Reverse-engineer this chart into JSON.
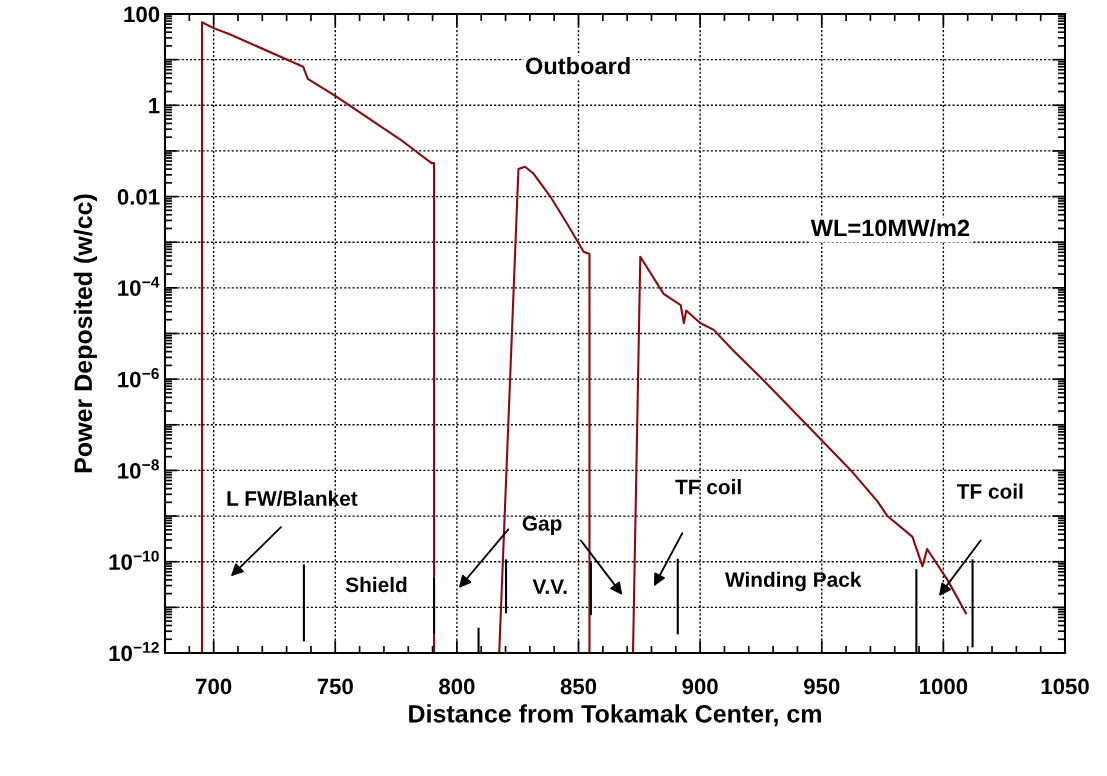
{
  "chart_data": {
    "type": "line",
    "xlabel": "Distance from Tokamak Center, cm",
    "ylabel": "Power Deposited (w/cc)",
    "log": "y",
    "grid": true,
    "legend": false,
    "xlim": [
      680,
      1050
    ],
    "xticks": [
      700,
      750,
      800,
      850,
      900,
      950,
      1000,
      1050
    ],
    "ylim": [
      1e-12,
      100
    ],
    "yticks": [
      {
        "value": 1e-12,
        "label": "10$^{−12}$"
      },
      {
        "value": 1e-11,
        "label": null
      },
      {
        "value": 1e-10,
        "label": "10$^{−10}$"
      },
      {
        "value": 1e-09,
        "label": null
      },
      {
        "value": 1e-08,
        "label": "10$^{−8}$"
      },
      {
        "value": 1e-07,
        "label": null
      },
      {
        "value": 1e-06,
        "label": "10$^{−6}$"
      },
      {
        "value": 1e-05,
        "label": null
      },
      {
        "value": 0.0001,
        "label": "10$^{−4}$"
      },
      {
        "value": 0.001,
        "label": null
      },
      {
        "value": 0.01,
        "label": "0.01"
      },
      {
        "value": 0.1,
        "label": null
      },
      {
        "value": 1,
        "label": "1"
      },
      {
        "value": 10,
        "label": null
      },
      {
        "value": 100,
        "label": "100"
      }
    ],
    "series": [
      {
        "color": "#8b0a0a",
        "x": [
          695.2,
          695.2,
          700,
          706.6,
          736.8,
          738.7,
          750,
          776.6,
          789.6,
          790.6,
          790.6,
          800,
          817.4,
          825.3,
          828,
          831.5,
          838.4,
          845.2,
          852.1,
          854.5,
          854.5,
          860,
          872.4,
          875.4,
          885,
          892,
          893.3,
          894.3,
          900,
          905.6,
          913.5,
          924.8,
          944,
          962,
          972.9,
          977,
          987.3,
          991.4,
          993.3,
          1001.8,
          1009.3
        ],
        "values": [
          1e-12,
          66,
          49,
          36,
          7.0,
          3.8,
          1.6,
          0.18,
          0.054,
          0.054,
          1e-12,
          null,
          1e-12,
          0.04,
          0.045,
          0.032,
          0.01,
          0.0026,
          0.00062,
          0.00055,
          1e-12,
          null,
          1e-12,
          0.00048,
          7.4e-05,
          4.2e-05,
          1.7e-05,
          3.2e-05,
          1.7e-05,
          1.2e-05,
          4.3e-06,
          1.1e-06,
          9.8e-08,
          1e-08,
          2.1e-09,
          1e-09,
          3.5e-10,
          7.9e-11,
          1.9e-10,
          3.9e-11,
          7.4e-12
        ]
      },
      {
        "color": "#000000",
        "x": [
          737.1,
          737.1
        ],
        "values": [
          8.3e-11,
          1.9e-12
        ]
      },
      {
        "color": "#000000",
        "x": [
          790.6,
          790.6
        ],
        "values": [
          4.2e-11,
          2.8e-12
        ]
      },
      {
        "color": "#000000",
        "x": [
          808.9,
          808.9
        ],
        "values": [
          3.4e-12,
          1e-12
        ]
      },
      {
        "color": "#000000",
        "x": [
          820.2,
          820.2
        ],
        "values": [
          1.07e-10,
          7.8e-12
        ]
      },
      {
        "color": "#000000",
        "x": [
          855.1,
          855.1
        ],
        "values": [
          9e-11,
          7.1e-12
        ]
      },
      {
        "color": "#000000",
        "x": [
          890.8,
          890.8
        ],
        "values": [
          1.1e-10,
          2.7e-12
        ]
      },
      {
        "color": "#000000",
        "x": [
          988.9,
          988.9
        ],
        "values": [
          6.5e-11,
          1e-12
        ]
      },
      {
        "color": "#000000",
        "x": [
          1012,
          1012
        ],
        "values": [
          1.07e-10,
          1.4e-12
        ]
      }
    ],
    "annotations": [
      "Outboard",
      "WL=10MW/m2",
      "L FW/Blanket",
      "Shield",
      "Gap",
      "V.V.",
      "TF coil",
      "Winding Pack",
      "TF coil"
    ]
  }
}
